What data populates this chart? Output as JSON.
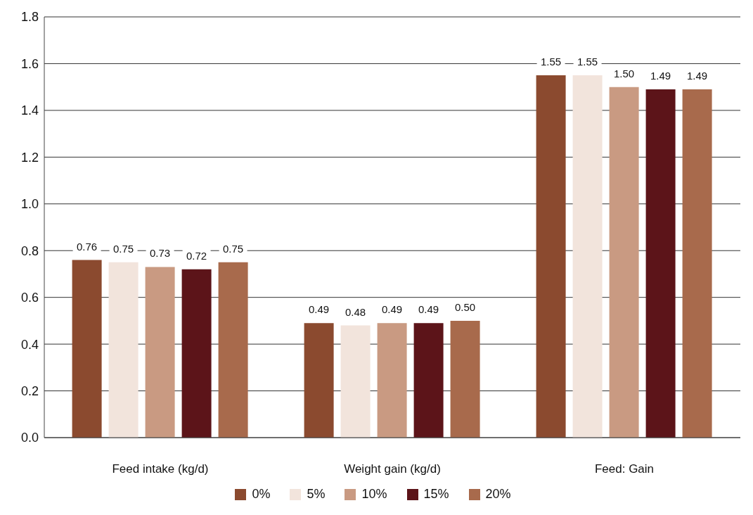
{
  "chart_data": {
    "type": "bar",
    "categories": [
      "Feed intake (kg/d)",
      "Weight gain (kg/d)",
      "Feed: Gain"
    ],
    "series": [
      {
        "name": "0%",
        "color": "#8b4a2f",
        "values": [
          0.76,
          0.49,
          1.55
        ]
      },
      {
        "name": "5%",
        "color": "#f2e4dc",
        "values": [
          0.75,
          0.48,
          1.55
        ]
      },
      {
        "name": "10%",
        "color": "#c99a82",
        "values": [
          0.73,
          0.49,
          1.5
        ],
        "value_labels": [
          "0.73",
          "0.49",
          "1.50"
        ]
      },
      {
        "name": "15%",
        "color": "#5c1419",
        "values": [
          0.72,
          0.49,
          1.49
        ]
      },
      {
        "name": "20%",
        "color": "#a86a4c",
        "values": [
          0.75,
          0.5,
          1.49
        ],
        "value_labels": [
          "0.75",
          "0.50",
          "1.49"
        ]
      }
    ],
    "ylim": [
      0,
      1.8
    ],
    "yticks": [
      {
        "value": 0,
        "label": "0.0"
      },
      0.2,
      0.4,
      0.6,
      0.8,
      {
        "value": 1,
        "label": "1.0"
      },
      1.2,
      1.4,
      1.6,
      1.8
    ],
    "grid": "y",
    "legend": "bottom",
    "data_labels": true
  }
}
